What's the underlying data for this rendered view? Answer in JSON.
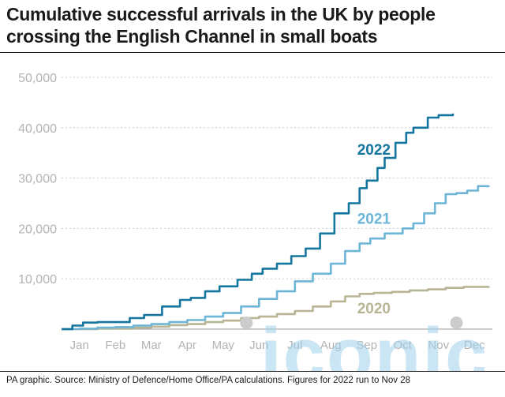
{
  "title": "Cumulative successful arrivals in the UK by people crossing the English Channel in small boats",
  "source": "PA graphic. Source: Ministry of Defence/Home Office/PA calculations. Figures for 2022 run to Nov 28",
  "watermark": "iconic",
  "colors": {
    "2022": "#14769e",
    "2021": "#6cb5d6",
    "2020": "#b8b595",
    "grid": "#cccccc",
    "axis_text": "#b3b3b3",
    "watermark": "#9fd0ea"
  },
  "chart_data": {
    "type": "line",
    "title": "Cumulative successful arrivals in the UK by people crossing the English Channel in small boats",
    "xlabel": "",
    "ylabel": "",
    "ylim": [
      0,
      50000
    ],
    "yticks": [
      0,
      10000,
      20000,
      30000,
      40000,
      50000
    ],
    "ytick_labels": [
      "",
      "10,000",
      "20,000",
      "30,000",
      "40,000",
      "50,000"
    ],
    "x_categories": [
      "Jan",
      "Feb",
      "Mar",
      "Apr",
      "May",
      "Jun",
      "Jul",
      "Aug",
      "Sep",
      "Oct",
      "Nov",
      "Dec"
    ],
    "grid": true,
    "legend": "inline labels",
    "series": [
      {
        "name": "2022",
        "label_at": [
          8.7,
          35700
        ],
        "points": [
          [
            0,
            0
          ],
          [
            0.3,
            700
          ],
          [
            0.6,
            1300
          ],
          [
            1.0,
            1400
          ],
          [
            1.5,
            1400
          ],
          [
            1.9,
            2200
          ],
          [
            2.3,
            2800
          ],
          [
            2.8,
            4500
          ],
          [
            3.3,
            5800
          ],
          [
            3.6,
            6200
          ],
          [
            4.0,
            7500
          ],
          [
            4.4,
            8500
          ],
          [
            4.9,
            9800
          ],
          [
            5.3,
            11000
          ],
          [
            5.6,
            12000
          ],
          [
            6.0,
            13000
          ],
          [
            6.4,
            14500
          ],
          [
            6.8,
            16000
          ],
          [
            7.2,
            19000
          ],
          [
            7.6,
            23000
          ],
          [
            8.0,
            25000
          ],
          [
            8.3,
            28000
          ],
          [
            8.5,
            29500
          ],
          [
            8.8,
            32000
          ],
          [
            9.0,
            34000
          ],
          [
            9.3,
            37000
          ],
          [
            9.6,
            39000
          ],
          [
            9.8,
            40000
          ],
          [
            10.2,
            42000
          ],
          [
            10.5,
            42500
          ],
          [
            10.9,
            42800
          ]
        ]
      },
      {
        "name": "2021",
        "label_at": [
          8.7,
          22000
        ],
        "points": [
          [
            0,
            0
          ],
          [
            0.5,
            100
          ],
          [
            1.0,
            300
          ],
          [
            1.5,
            400
          ],
          [
            2.0,
            700
          ],
          [
            2.5,
            1000
          ],
          [
            3.0,
            1400
          ],
          [
            3.5,
            1800
          ],
          [
            4.0,
            2500
          ],
          [
            4.5,
            3200
          ],
          [
            5.0,
            4500
          ],
          [
            5.5,
            6000
          ],
          [
            6.0,
            7500
          ],
          [
            6.5,
            9500
          ],
          [
            7.0,
            11000
          ],
          [
            7.5,
            13000
          ],
          [
            7.9,
            15500
          ],
          [
            8.3,
            17000
          ],
          [
            8.6,
            18000
          ],
          [
            9.0,
            19000
          ],
          [
            9.5,
            20000
          ],
          [
            9.8,
            21000
          ],
          [
            10.1,
            23000
          ],
          [
            10.4,
            25000
          ],
          [
            10.7,
            26800
          ],
          [
            11.0,
            27000
          ],
          [
            11.3,
            27500
          ],
          [
            11.6,
            28400
          ],
          [
            11.9,
            28500
          ]
        ]
      },
      {
        "name": "2020",
        "label_at": [
          8.7,
          4200
        ],
        "points": [
          [
            0,
            0
          ],
          [
            1.0,
            100
          ],
          [
            2.0,
            300
          ],
          [
            2.5,
            500
          ],
          [
            3.0,
            800
          ],
          [
            3.5,
            1000
          ],
          [
            4.0,
            1400
          ],
          [
            4.5,
            1700
          ],
          [
            5.0,
            2200
          ],
          [
            5.5,
            2500
          ],
          [
            6.0,
            3000
          ],
          [
            6.5,
            3600
          ],
          [
            7.0,
            4500
          ],
          [
            7.5,
            5500
          ],
          [
            7.9,
            6500
          ],
          [
            8.3,
            7000
          ],
          [
            8.7,
            7200
          ],
          [
            9.2,
            7400
          ],
          [
            9.7,
            7700
          ],
          [
            10.2,
            7900
          ],
          [
            10.7,
            8200
          ],
          [
            11.2,
            8400
          ],
          [
            11.9,
            8500
          ]
        ]
      }
    ]
  }
}
